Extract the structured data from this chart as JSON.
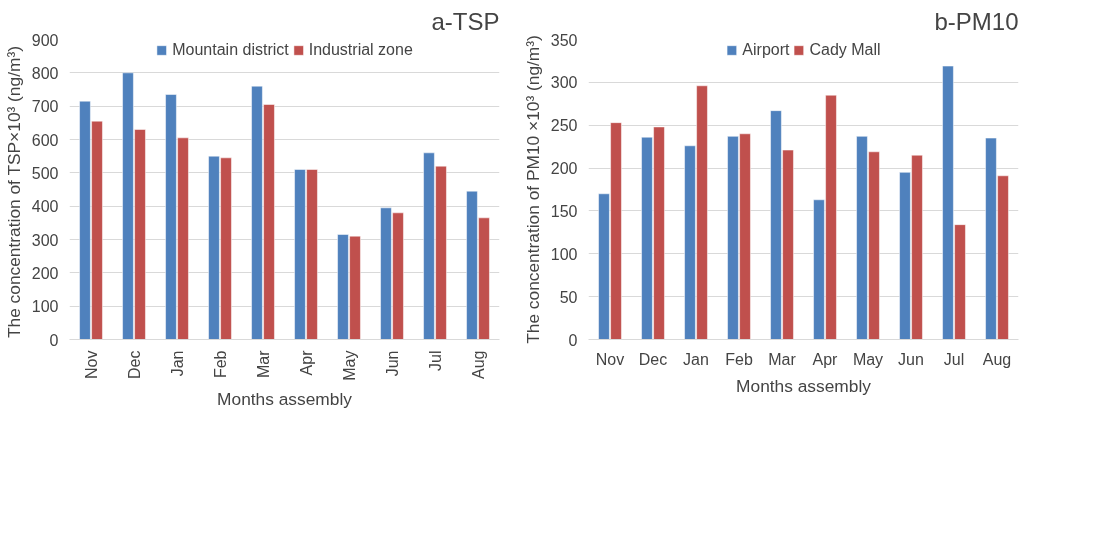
{
  "chart_data": [
    {
      "type": "bar",
      "title": "a-TSP",
      "xlabel": "Months assembly",
      "ylabel": "The concentration of TSP×10³  (ng/m³)",
      "categories": [
        "Nov",
        "Dec",
        "Jan",
        "Feb",
        "Mar",
        "Apr",
        "May",
        "Jun",
        "Jul",
        "Aug"
      ],
      "series": [
        {
          "name": "Mountain district",
          "color": "#4f81bd",
          "values": [
            715,
            800,
            735,
            550,
            760,
            510,
            315,
            395,
            560,
            445
          ]
        },
        {
          "name": "Industrial zone",
          "color": "#c0504d",
          "values": [
            655,
            630,
            605,
            545,
            705,
            510,
            310,
            380,
            520,
            365
          ]
        }
      ],
      "ylim": [
        0,
        900
      ],
      "yticks": [
        0,
        100,
        200,
        300,
        400,
        500,
        600,
        700,
        800,
        900
      ],
      "grid": "y",
      "legend": "top"
    },
    {
      "type": "bar",
      "title": "b-PM10",
      "xlabel": "Months assembly",
      "ylabel": "The concentration of PM10 ×10³ (ng/m³)",
      "categories": [
        "Nov",
        "Dec",
        "Jan",
        "Feb",
        "Mar",
        "Apr",
        "May",
        "Jun",
        "Jul",
        "Aug"
      ],
      "series": [
        {
          "name": "Airport",
          "color": "#4f81bd",
          "values": [
            170,
            236,
            226,
            237,
            267,
            163,
            237,
            195,
            319,
            235
          ]
        },
        {
          "name": "Cady Mall",
          "color": "#c0504d",
          "values": [
            253,
            248,
            296,
            240,
            221,
            285,
            219,
            215,
            134,
            191
          ]
        }
      ],
      "ylim": [
        0,
        350
      ],
      "yticks": [
        0,
        50,
        100,
        150,
        200,
        250,
        300,
        350
      ],
      "grid": "y",
      "legend": "top"
    }
  ]
}
